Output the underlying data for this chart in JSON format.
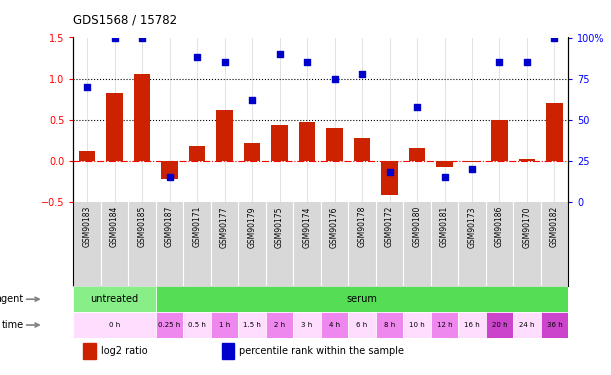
{
  "title": "GDS1568 / 15782",
  "samples": [
    "GSM90183",
    "GSM90184",
    "GSM90185",
    "GSM90187",
    "GSM90171",
    "GSM90177",
    "GSM90179",
    "GSM90175",
    "GSM90174",
    "GSM90176",
    "GSM90178",
    "GSM90172",
    "GSM90180",
    "GSM90181",
    "GSM90173",
    "GSM90186",
    "GSM90170",
    "GSM90182"
  ],
  "log2_ratio": [
    0.12,
    0.82,
    1.05,
    -0.22,
    0.18,
    0.62,
    0.22,
    0.43,
    0.47,
    0.4,
    0.28,
    -0.42,
    0.15,
    -0.08,
    -0.01,
    0.5,
    0.02,
    0.7
  ],
  "percentile": [
    70,
    100,
    100,
    15,
    88,
    85,
    62,
    90,
    85,
    75,
    78,
    18,
    58,
    15,
    20,
    85,
    85,
    100
  ],
  "bar_color": "#cc2200",
  "dot_color": "#0000cc",
  "ylim_left": [
    -0.5,
    1.5
  ],
  "ylim_right": [
    0,
    100
  ],
  "yticks_left": [
    -0.5,
    0.0,
    0.5,
    1.0,
    1.5
  ],
  "yticks_right": [
    0,
    25,
    50,
    75,
    100
  ],
  "hlines_dotted": [
    1.0,
    0.5
  ],
  "hline_dashdot": 0.0,
  "agent_labels": [
    {
      "label": "untreated",
      "start": 0,
      "end": 3,
      "color": "#88ee88"
    },
    {
      "label": "serum",
      "start": 3,
      "end": 18,
      "color": "#55dd55"
    }
  ],
  "time_spans": [
    {
      "label": "0 h",
      "start": 0,
      "end": 3,
      "color": "#ffddff"
    },
    {
      "label": "0.25 h",
      "start": 3,
      "end": 4,
      "color": "#ee88ee"
    },
    {
      "label": "0.5 h",
      "start": 4,
      "end": 5,
      "color": "#ffddff"
    },
    {
      "label": "1 h",
      "start": 5,
      "end": 6,
      "color": "#ee88ee"
    },
    {
      "label": "1.5 h",
      "start": 6,
      "end": 7,
      "color": "#ffddff"
    },
    {
      "label": "2 h",
      "start": 7,
      "end": 8,
      "color": "#ee88ee"
    },
    {
      "label": "3 h",
      "start": 8,
      "end": 9,
      "color": "#ffddff"
    },
    {
      "label": "4 h",
      "start": 9,
      "end": 10,
      "color": "#ee88ee"
    },
    {
      "label": "6 h",
      "start": 10,
      "end": 11,
      "color": "#ffddff"
    },
    {
      "label": "8 h",
      "start": 11,
      "end": 12,
      "color": "#ee88ee"
    },
    {
      "label": "10 h",
      "start": 12,
      "end": 13,
      "color": "#ffddff"
    },
    {
      "label": "12 h",
      "start": 13,
      "end": 14,
      "color": "#ee88ee"
    },
    {
      "label": "16 h",
      "start": 14,
      "end": 15,
      "color": "#ffddff"
    },
    {
      "label": "20 h",
      "start": 15,
      "end": 16,
      "color": "#cc44cc"
    },
    {
      "label": "24 h",
      "start": 16,
      "end": 17,
      "color": "#ffddff"
    },
    {
      "label": "36 h",
      "start": 17,
      "end": 18,
      "color": "#cc44cc"
    }
  ],
  "legend_items": [
    {
      "label": "log2 ratio",
      "color": "#cc2200"
    },
    {
      "label": "percentile rank within the sample",
      "color": "#0000cc"
    }
  ],
  "bg_color": "#ffffff",
  "sample_bg": "#d8d8d8",
  "bar_width": 0.6,
  "main_bg": "#ffffff"
}
